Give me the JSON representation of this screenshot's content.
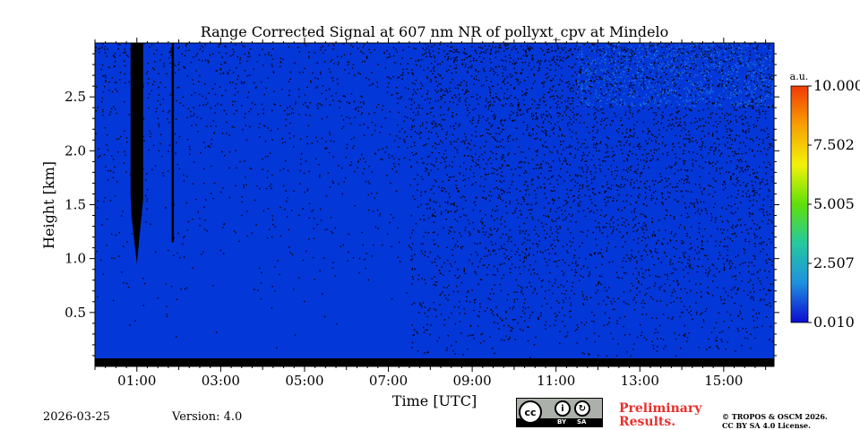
{
  "chart_data": {
    "type": "heatmap",
    "title": "Range Corrected Signal at 607 nm NR of pollyxt_cpv at Mindelo",
    "xlabel": "Time [UTC]",
    "ylabel": "Height [km]",
    "x_range_hours": [
      0.0,
      16.2
    ],
    "y_range_km": [
      0.0,
      3.0
    ],
    "x_ticks": [
      {
        "value": 1,
        "label": "01:00"
      },
      {
        "value": 3,
        "label": "03:00"
      },
      {
        "value": 5,
        "label": "05:00"
      },
      {
        "value": 7,
        "label": "07:00"
      },
      {
        "value": 9,
        "label": "09:00"
      },
      {
        "value": 11,
        "label": "11:00"
      },
      {
        "value": 13,
        "label": "13:00"
      },
      {
        "value": 15,
        "label": "15:00"
      }
    ],
    "y_ticks": [
      {
        "value": 0.5,
        "label": "0.5"
      },
      {
        "value": 1.0,
        "label": "1.0"
      },
      {
        "value": 1.5,
        "label": "1.5"
      },
      {
        "value": 2.0,
        "label": "2.0"
      },
      {
        "value": 2.5,
        "label": "2.5"
      }
    ],
    "colorbar": {
      "unit": "a.u.",
      "range": [
        0.01,
        10.0
      ],
      "ticks": [
        {
          "value": 0.01,
          "label": "0.010"
        },
        {
          "value": 2.507,
          "label": "2.507"
        },
        {
          "value": 5.005,
          "label": "5.005"
        },
        {
          "value": 7.502,
          "label": "7.502"
        },
        {
          "value": 10.0,
          "label": "10.000"
        }
      ],
      "colors": [
        "#0b0bd0",
        "#1f8fe0",
        "#24c9a0",
        "#5fe00a",
        "#f2f20a",
        "#f8a004",
        "#f03a06"
      ]
    },
    "features": {
      "signal_background": "#0437d8",
      "noise_color": "#000000",
      "noise_onset_hour": 7.5,
      "cloud_column_hours": [
        0.85,
        1.15
      ],
      "cloud_column_base_km": 0.95,
      "secondary_column_hour": 1.85,
      "secondary_column_base_km": 1.15
    }
  },
  "footer": {
    "date": "2026-03-25",
    "version": "Version: 4.0",
    "preliminary_line1": "Preliminary",
    "preliminary_line2": "Results.",
    "copyright_line1": "© TROPOS & OSCM 2026.",
    "copyright_line2": "CC BY SA 4.0 License.",
    "license_badge": {
      "cc": "cc",
      "by": "BY",
      "sa": "SA"
    }
  }
}
